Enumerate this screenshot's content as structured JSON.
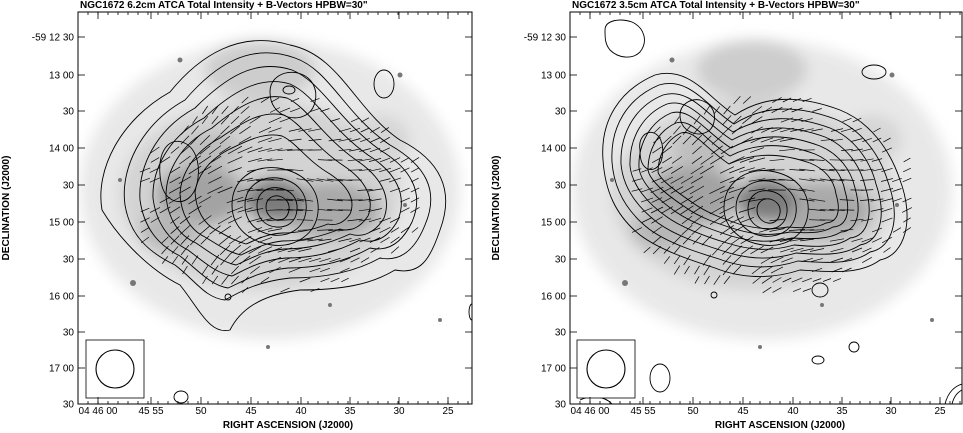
{
  "figure": {
    "panels": [
      {
        "title": "NGC1672   6.2cm   ATCA    Total Intensity + B-Vectors    HPBW=30\"",
        "ytick_labels": [
          "-59 12 30",
          "13 00",
          "30",
          "14 00",
          "30",
          "15 00",
          "30",
          "16 00",
          "30",
          "17 00",
          "30"
        ],
        "xtick_labels": [
          "04 46 00",
          "45 55",
          "50",
          "45",
          "40",
          "35",
          "30",
          "25"
        ],
        "xlabel": "RIGHT ASCENSION (J2000)",
        "ylabel": "DECLINATION (J2000)"
      },
      {
        "title": "NGC1672   3.5cm   ATCA    Total Intensity + B-Vectors    HPBW=30\"",
        "ytick_labels": [
          "-59 12 30",
          "13 00",
          "30",
          "14 00",
          "30",
          "15 00",
          "30",
          "16 00",
          "30",
          "17 00",
          "30"
        ],
        "xtick_labels": [
          "04 46 00",
          "45 55",
          "50",
          "45",
          "40",
          "35",
          "30",
          "25"
        ],
        "xlabel": "RIGHT ASCENSION (J2000)",
        "ylabel": "DECLINATION (J2000)"
      }
    ]
  }
}
